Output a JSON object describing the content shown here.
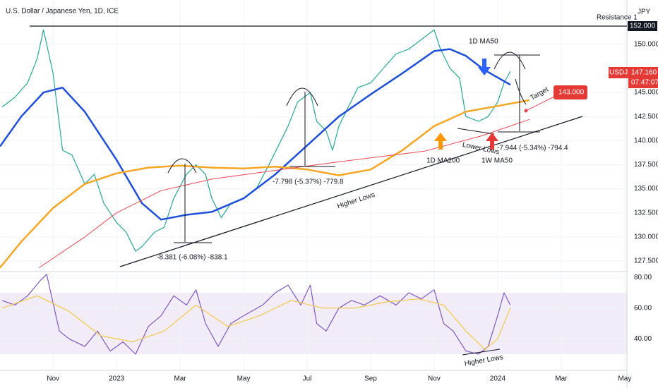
{
  "header": {
    "title": "U.S. Dollar / Japanese Yen, 1D, ICE",
    "currency": "JPY"
  },
  "annotations": [
    "Resistance 1",
    "152.000",
    "Lower Lows",
    "Higher Lows",
    "Target",
    "143.000",
    "147.160",
    "07:47:07",
    "-8.381 (-6.08%) -838.1",
    "-7.798 (-5.37%) -779.8",
    "-7.944 (-5.34%) -794.4"
  ],
  "chart_data": [
    {
      "type": "line",
      "xlim": [
        -1.67,
        18.07
      ],
      "xticks": [
        {
          "value": 0,
          "label": "Nov"
        },
        {
          "value": 2,
          "label": "2023"
        },
        {
          "value": 4,
          "label": "Mar"
        },
        {
          "value": 6,
          "label": "May"
        },
        {
          "value": 8,
          "label": "Jul"
        },
        {
          "value": 10,
          "label": "Sep"
        },
        {
          "value": 12,
          "label": "Nov"
        },
        {
          "value": 14,
          "label": "2024"
        },
        {
          "value": 16,
          "label": "Mar"
        },
        {
          "value": 18,
          "label": "May"
        }
      ],
      "ylim": [
        126.4,
        154.6
      ],
      "yticks": [
        {
          "value": 127.5,
          "label": "127.500"
        },
        {
          "value": 130,
          "label": "130.000"
        },
        {
          "value": 132.5,
          "label": "132.500"
        },
        {
          "value": 135,
          "label": "135.000"
        },
        {
          "value": 137.5,
          "label": "137.500"
        },
        {
          "value": 140,
          "label": "140.000"
        },
        {
          "value": 142.5,
          "label": "142.500"
        },
        {
          "value": 145,
          "label": "145.000"
        },
        {
          "value": 150,
          "label": "150.000"
        }
      ],
      "series": [
        {
          "name": "USDJPY",
          "color": "#26a69a",
          "x": [
            -1.6,
            -1.2,
            -0.8,
            -0.5,
            -0.3,
            0.0,
            0.3,
            0.6,
            1.0,
            1.3,
            1.6,
            2.0,
            2.3,
            2.6,
            2.8,
            3.2,
            3.5,
            3.8,
            4.2,
            4.5,
            4.8,
            5.0,
            5.3,
            5.6,
            6.0,
            6.4,
            6.8,
            7.1,
            7.4,
            7.7,
            8.1,
            8.3,
            8.6,
            8.8,
            9.0,
            9.3,
            9.6,
            10.0,
            10.4,
            10.8,
            11.2,
            11.6,
            12.0,
            12.2,
            12.5,
            12.8,
            13.0,
            13.4,
            13.7,
            14.0,
            14.2,
            14.4
          ],
          "values": [
            143.5,
            144.5,
            146.0,
            148.5,
            151.5,
            147.0,
            139.0,
            138.5,
            135.5,
            136.5,
            133.5,
            131.5,
            130.5,
            128.5,
            129.0,
            130.5,
            131.0,
            134.0,
            136.5,
            137.5,
            136.5,
            134.0,
            132.0,
            133.5,
            134.0,
            135.0,
            137.5,
            139.5,
            141.5,
            144.0,
            145.0,
            142.0,
            141.0,
            139.0,
            141.5,
            143.5,
            145.5,
            146.0,
            147.5,
            149.0,
            149.5,
            150.5,
            151.5,
            149.5,
            147.5,
            146.5,
            142.5,
            142.0,
            142.5,
            144.0,
            146.0,
            147.2
          ]
        },
        {
          "name": "1D MA50",
          "color": "#1e4fd9",
          "x": [
            -1.67,
            -1.0,
            -0.3,
            0.3,
            1.0,
            2.0,
            2.8,
            3.4,
            4.2,
            5.0,
            6.0,
            7.0,
            8.0,
            9.0,
            10.0,
            11.0,
            12.0,
            12.5,
            13.0,
            13.6,
            14.4
          ],
          "values": [
            139.4,
            142.5,
            145.0,
            145.5,
            143.0,
            138.0,
            133.5,
            131.8,
            132.3,
            132.6,
            134.0,
            136.5,
            139.5,
            142.5,
            144.8,
            147.0,
            149.3,
            149.5,
            148.8,
            147.3,
            145.8
          ]
        },
        {
          "name": "1D MA200",
          "color": "#f5a623",
          "x": [
            -1.67,
            -1.0,
            0.0,
            1.0,
            2.0,
            3.0,
            4.0,
            5.0,
            6.0,
            7.0,
            8.0,
            9.0,
            10.0,
            11.0,
            12.0,
            13.0,
            14.0,
            15.0
          ],
          "values": [
            126.8,
            129.5,
            133.0,
            135.5,
            136.6,
            137.2,
            137.4,
            137.2,
            137.1,
            137.3,
            137.0,
            136.4,
            137.0,
            139.0,
            141.5,
            143.0,
            143.6,
            144.2
          ]
        },
        {
          "name": "1W MA50",
          "color": "#e8474f",
          "x": [
            -0.44,
            1.0,
            2.0,
            3.4,
            5.0,
            7.2,
            9.0,
            11.7,
            13.5,
            15.0
          ],
          "values": [
            126.8,
            130.0,
            132.5,
            134.8,
            136.0,
            137.0,
            137.8,
            138.9,
            140.5,
            142.2
          ]
        }
      ]
    },
    {
      "type": "line",
      "xlim": [
        -1.67,
        18.07
      ],
      "ylim": [
        19.4,
        83.8
      ],
      "yticks": [
        {
          "value": 40,
          "label": "40.00"
        },
        {
          "value": 60,
          "label": "60.00"
        },
        {
          "value": 80,
          "label": "80.00"
        }
      ],
      "annotations": [
        "Higher Lows"
      ],
      "series": [
        {
          "color": "#7e57c2",
          "x": [
            -1.6,
            -1.2,
            -0.8,
            -0.4,
            -0.2,
            0.2,
            0.5,
            1.0,
            1.4,
            1.8,
            2.2,
            2.6,
            3.0,
            3.4,
            3.8,
            4.2,
            4.5,
            4.8,
            5.2,
            5.6,
            6.0,
            6.6,
            7.0,
            7.4,
            7.8,
            8.1,
            8.3,
            8.6,
            9.0,
            9.4,
            9.8,
            10.3,
            10.8,
            11.2,
            11.6,
            12.0,
            12.3,
            12.6,
            13.0,
            13.4,
            13.7,
            14.0,
            14.2,
            14.4
          ],
          "values": [
            65,
            62,
            68,
            78,
            82,
            45,
            40,
            35,
            45,
            32,
            38,
            30,
            48,
            55,
            68,
            62,
            72,
            50,
            35,
            50,
            55,
            62,
            70,
            75,
            62,
            75,
            50,
            45,
            60,
            65,
            62,
            68,
            62,
            70,
            66,
            72,
            50,
            45,
            32,
            30,
            35,
            55,
            70,
            62
          ]
        },
        {
          "color": "#f2c94c",
          "x": [
            -1.6,
            -0.5,
            0.5,
            1.5,
            2.5,
            3.5,
            4.5,
            5.5,
            6.5,
            7.5,
            8.5,
            9.5,
            10.5,
            11.5,
            12.3,
            13.0,
            13.6,
            14.0,
            14.4
          ],
          "values": [
            60,
            68,
            58,
            42,
            38,
            45,
            62,
            48,
            55,
            65,
            60,
            60,
            64,
            66,
            62,
            45,
            33,
            40,
            60
          ]
        }
      ]
    }
  ]
}
